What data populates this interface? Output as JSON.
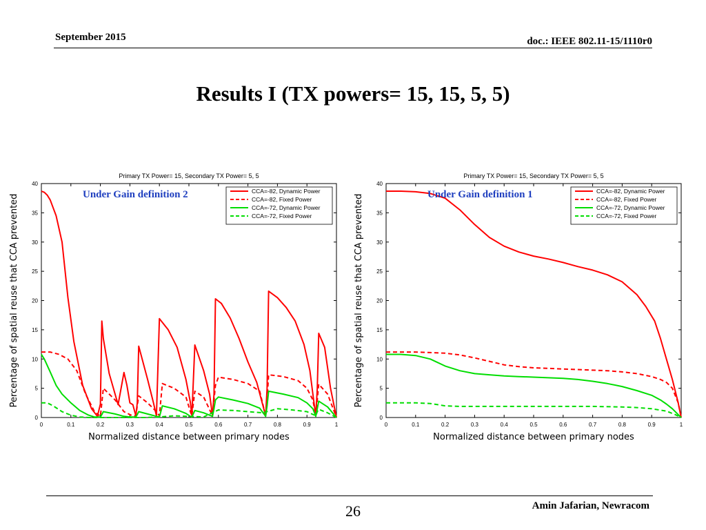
{
  "slide": {
    "header_left": "September 2015",
    "header_right": "doc.: IEEE 802.11-15/1110r0",
    "title": "Results I (TX powers= 15, 15, 5, 5)",
    "page_number": "26",
    "footer_right": "Amin Jafarian, Newracom"
  },
  "colors": {
    "red": "#ff0000",
    "green": "#00dd00",
    "annotation": "#1f3fbf"
  },
  "chart_data": [
    {
      "type": "line",
      "title": "Primary TX Power= 15, Secondary TX Power= 5, 5",
      "annotation": "Under Gain definition 2",
      "xlabel": "Normalized distance between primary nodes",
      "ylabel": "Percentage of spatial reuse that CCA prevented",
      "xlim": [
        0,
        1
      ],
      "ylim": [
        0,
        40
      ],
      "xticks": [
        "0",
        "0.1",
        "0.2",
        "0.3",
        "0.4",
        "0.5",
        "0.6",
        "0.7",
        "0.8",
        "0.9",
        "1"
      ],
      "yticks": [
        "0",
        "5",
        "10",
        "15",
        "20",
        "25",
        "30",
        "35",
        "40"
      ],
      "grid": false,
      "legend_position": "top-right",
      "series": [
        {
          "name": "CCA=-82, Dynamic Power",
          "color": "#ff0000",
          "dash": "solid",
          "x": [
            0,
            0.01,
            0.02,
            0.03,
            0.05,
            0.07,
            0.09,
            0.11,
            0.14,
            0.17,
            0.19,
            0.2,
            0.205,
            0.21,
            0.23,
            0.26,
            0.28,
            0.29,
            0.3,
            0.31,
            0.32,
            0.325,
            0.33,
            0.36,
            0.38,
            0.39,
            0.4,
            0.43,
            0.46,
            0.49,
            0.505,
            0.51,
            0.52,
            0.55,
            0.57,
            0.58,
            0.585,
            0.59,
            0.61,
            0.64,
            0.67,
            0.7,
            0.73,
            0.76,
            0.765,
            0.77,
            0.8,
            0.83,
            0.86,
            0.89,
            0.91,
            0.92,
            0.93,
            0.935,
            0.94,
            0.96,
            0.98,
            1.0
          ],
          "y": [
            38.7,
            38.5,
            38.0,
            37.2,
            34.5,
            30.0,
            20.5,
            13.0,
            5.5,
            1.5,
            0.2,
            2.3,
            16.5,
            13.5,
            7.5,
            2.2,
            7.7,
            5.5,
            2.5,
            2.2,
            0.3,
            2.5,
            12.2,
            6.5,
            2.5,
            0.3,
            16.9,
            15.0,
            12.0,
            6.5,
            2.6,
            0.3,
            12.4,
            8.0,
            4.0,
            0.3,
            4.0,
            20.3,
            19.5,
            17.0,
            13.5,
            9.5,
            6.0,
            0.3,
            5.0,
            21.6,
            20.5,
            18.8,
            16.5,
            12.5,
            8.0,
            4.0,
            0.3,
            5.0,
            14.4,
            12.0,
            5.0,
            0.0
          ]
        },
        {
          "name": "CCA=-82, Fixed Power",
          "color": "#ff0000",
          "dash": "dashed",
          "x": [
            0,
            0.03,
            0.06,
            0.09,
            0.12,
            0.15,
            0.18,
            0.2,
            0.205,
            0.21,
            0.25,
            0.28,
            0.3,
            0.31,
            0.32,
            0.325,
            0.33,
            0.36,
            0.39,
            0.4,
            0.405,
            0.41,
            0.45,
            0.49,
            0.505,
            0.51,
            0.52,
            0.55,
            0.58,
            0.585,
            0.59,
            0.6,
            0.65,
            0.7,
            0.74,
            0.76,
            0.765,
            0.77,
            0.82,
            0.87,
            0.9,
            0.92,
            0.93,
            0.935,
            0.94,
            0.97,
            1.0
          ],
          "y": [
            11.2,
            11.2,
            10.8,
            10.0,
            8.0,
            4.0,
            1.0,
            0.2,
            2.5,
            5.0,
            3.0,
            1.0,
            0.5,
            0.3,
            0.3,
            2.0,
            3.7,
            2.5,
            1.0,
            0.3,
            3.0,
            5.8,
            5.0,
            3.5,
            1.0,
            0.3,
            4.5,
            3.5,
            0.3,
            3.0,
            5.5,
            6.9,
            6.5,
            5.8,
            4.5,
            0.3,
            3.0,
            7.3,
            7.0,
            6.3,
            5.0,
            3.0,
            0.3,
            3.0,
            5.7,
            4.0,
            0.0
          ]
        },
        {
          "name": "CCA=-72, Dynamic Power",
          "color": "#00dd00",
          "dash": "solid",
          "x": [
            0,
            0.01,
            0.03,
            0.05,
            0.07,
            0.1,
            0.13,
            0.16,
            0.18,
            0.2,
            0.205,
            0.21,
            0.25,
            0.28,
            0.3,
            0.31,
            0.32,
            0.325,
            0.33,
            0.36,
            0.39,
            0.4,
            0.405,
            0.41,
            0.45,
            0.49,
            0.505,
            0.51,
            0.52,
            0.55,
            0.58,
            0.585,
            0.59,
            0.6,
            0.65,
            0.7,
            0.74,
            0.76,
            0.765,
            0.77,
            0.82,
            0.87,
            0.9,
            0.92,
            0.93,
            0.935,
            0.94,
            0.97,
            1.0
          ],
          "y": [
            10.8,
            10.0,
            7.8,
            5.5,
            4.0,
            2.5,
            1.2,
            0.4,
            0.1,
            0.1,
            0.5,
            1.0,
            0.6,
            0.2,
            0.1,
            0.1,
            0.1,
            0.5,
            1.0,
            0.6,
            0.2,
            0.1,
            1.0,
            2.0,
            1.5,
            0.7,
            0.2,
            0.1,
            1.2,
            0.8,
            0.2,
            1.5,
            3.0,
            3.5,
            3.0,
            2.4,
            1.6,
            0.2,
            2.0,
            4.5,
            4.0,
            3.4,
            2.5,
            1.5,
            0.2,
            1.5,
            2.8,
            1.8,
            0.0
          ]
        },
        {
          "name": "CCA=-72, Fixed Power",
          "color": "#00dd00",
          "dash": "dashed",
          "x": [
            0,
            0.02,
            0.04,
            0.07,
            0.1,
            0.13,
            0.16,
            0.2,
            0.25,
            0.3,
            0.35,
            0.4,
            0.45,
            0.5,
            0.55,
            0.6,
            0.65,
            0.7,
            0.75,
            0.8,
            0.85,
            0.9,
            0.93,
            0.935,
            0.94,
            0.97,
            1.0
          ],
          "y": [
            2.5,
            2.5,
            2.0,
            1.0,
            0.4,
            0.1,
            0.0,
            0.0,
            0.0,
            0.0,
            0.0,
            0.1,
            0.3,
            0.2,
            0.1,
            1.3,
            1.2,
            1.0,
            0.8,
            1.5,
            1.3,
            1.0,
            0.3,
            1.0,
            1.4,
            0.8,
            0.0
          ]
        }
      ]
    },
    {
      "type": "line",
      "title": "Primary TX Power= 15, Secondary TX Power= 5, 5",
      "annotation": "Under Gain definition 1",
      "xlabel": "Normalized distance between primary nodes",
      "ylabel": "Percentage of spatial reuse that CCA prevented",
      "xlim": [
        0,
        1
      ],
      "ylim": [
        0,
        40
      ],
      "xticks": [
        "0",
        "0.1",
        "0.2",
        "0.3",
        "0.4",
        "0.5",
        "0.6",
        "0.7",
        "0.8",
        "0.9",
        "1"
      ],
      "yticks": [
        "0",
        "5",
        "10",
        "15",
        "20",
        "25",
        "30",
        "35",
        "40"
      ],
      "grid": false,
      "legend_position": "top-right",
      "series": [
        {
          "name": "CCA=-82, Dynamic Power",
          "color": "#ff0000",
          "dash": "solid",
          "x": [
            0,
            0.05,
            0.1,
            0.15,
            0.2,
            0.25,
            0.3,
            0.35,
            0.4,
            0.45,
            0.5,
            0.55,
            0.6,
            0.65,
            0.7,
            0.75,
            0.8,
            0.85,
            0.88,
            0.91,
            0.93,
            0.95,
            0.97,
            0.99,
            1.0
          ],
          "y": [
            38.7,
            38.7,
            38.6,
            38.3,
            37.5,
            35.5,
            33.0,
            30.8,
            29.3,
            28.3,
            27.6,
            27.1,
            26.5,
            25.8,
            25.2,
            24.4,
            23.2,
            21.0,
            19.0,
            16.5,
            13.5,
            10.0,
            6.5,
            2.5,
            0.0
          ]
        },
        {
          "name": "CCA=-82, Fixed Power",
          "color": "#ff0000",
          "dash": "dashed",
          "x": [
            0,
            0.05,
            0.1,
            0.15,
            0.2,
            0.25,
            0.3,
            0.35,
            0.4,
            0.45,
            0.5,
            0.55,
            0.6,
            0.65,
            0.7,
            0.75,
            0.8,
            0.85,
            0.9,
            0.93,
            0.95,
            0.97,
            0.99,
            1.0
          ],
          "y": [
            11.2,
            11.2,
            11.2,
            11.1,
            11.0,
            10.7,
            10.2,
            9.6,
            9.0,
            8.7,
            8.5,
            8.4,
            8.3,
            8.2,
            8.1,
            8.0,
            7.8,
            7.5,
            7.0,
            6.5,
            6.0,
            5.0,
            2.5,
            0.0
          ]
        },
        {
          "name": "CCA=-72, Dynamic Power",
          "color": "#00dd00",
          "dash": "solid",
          "x": [
            0,
            0.05,
            0.1,
            0.15,
            0.2,
            0.25,
            0.3,
            0.35,
            0.4,
            0.45,
            0.5,
            0.55,
            0.6,
            0.65,
            0.7,
            0.75,
            0.8,
            0.85,
            0.9,
            0.93,
            0.95,
            0.97,
            0.99,
            1.0
          ],
          "y": [
            10.8,
            10.8,
            10.6,
            10.0,
            8.8,
            8.0,
            7.5,
            7.3,
            7.1,
            7.0,
            6.9,
            6.8,
            6.7,
            6.5,
            6.2,
            5.8,
            5.3,
            4.6,
            3.8,
            3.0,
            2.3,
            1.5,
            0.5,
            0.0
          ]
        },
        {
          "name": "CCA=-72, Fixed Power",
          "color": "#00dd00",
          "dash": "dashed",
          "x": [
            0,
            0.05,
            0.1,
            0.15,
            0.2,
            0.25,
            0.3,
            0.4,
            0.5,
            0.6,
            0.7,
            0.8,
            0.85,
            0.9,
            0.95,
            0.98,
            1.0
          ],
          "y": [
            2.5,
            2.5,
            2.5,
            2.4,
            2.0,
            1.9,
            1.9,
            1.9,
            1.9,
            1.9,
            1.9,
            1.8,
            1.7,
            1.5,
            1.1,
            0.5,
            0.0
          ]
        }
      ]
    }
  ]
}
